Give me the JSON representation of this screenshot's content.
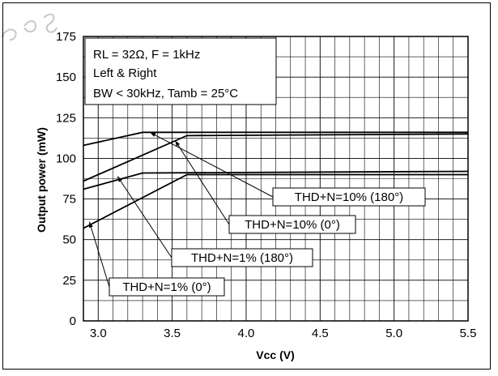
{
  "chart_data": {
    "type": "line",
    "title": "",
    "xlabel": "Vcc (V)",
    "ylabel": "Output power (mW)",
    "xlim": [
      2.9,
      5.5
    ],
    "ylim": [
      0,
      175
    ],
    "xticks": [
      3.0,
      3.5,
      4.0,
      4.5,
      5.0,
      5.5
    ],
    "xtick_labels": [
      "3.0",
      "3.5",
      "4.0",
      "4.5",
      "5.0",
      "5.5"
    ],
    "yticks": [
      0,
      25,
      50,
      75,
      100,
      125,
      150,
      175
    ],
    "ytick_labels": [
      "0",
      "25",
      "50",
      "75",
      "100",
      "125",
      "150",
      "175"
    ],
    "grid": true,
    "conditions": [
      "RL = 32Ω, F = 1kHz",
      "Left & Right",
      "BW < 30kHz, Tamb = 25°C"
    ],
    "series": [
      {
        "name": "THD+N=10% (180°)",
        "x": [
          2.9,
          3.3,
          5.5
        ],
        "y": [
          108,
          116,
          116
        ]
      },
      {
        "name": "THD+N=10% (0°)",
        "x": [
          2.9,
          3.6,
          5.5
        ],
        "y": [
          86,
          114,
          115
        ]
      },
      {
        "name": "THD+N=1% (180°)",
        "x": [
          2.9,
          3.3,
          5.5
        ],
        "y": [
          81,
          91,
          92
        ]
      },
      {
        "name": "THD+N=1% (0°)",
        "x": [
          2.9,
          3.6,
          5.5
        ],
        "y": [
          57,
          90,
          90
        ]
      }
    ],
    "annotations": [
      {
        "text": "THD+N=10% (180°)",
        "series": 0,
        "x": 3.35,
        "y": 116
      },
      {
        "text": "THD+N=10% (0°)",
        "series": 1,
        "x": 3.52,
        "y": 111
      },
      {
        "text": "THD+N=1% (180°)",
        "series": 2,
        "x": 3.13,
        "y": 89
      },
      {
        "text": "THD+N=1% (0°)",
        "series": 3,
        "x": 2.94,
        "y": 61
      }
    ]
  }
}
